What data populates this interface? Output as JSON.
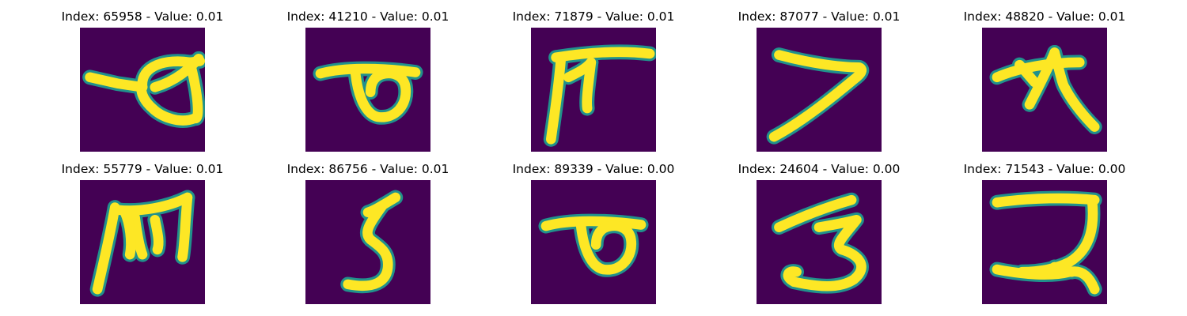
{
  "colors": {
    "background": "#440154",
    "stroke_core": "#fde725",
    "stroke_edge": "#21918c"
  },
  "panels": [
    {
      "title": "Index: 65958 - Value: 0.01",
      "glyph": "loop-with-tail"
    },
    {
      "title": "Index: 41210 - Value: 0.01",
      "glyph": "loop-with-bar"
    },
    {
      "title": "Index: 71879 - Value: 0.01",
      "glyph": "pi-shape"
    },
    {
      "title": "Index: 87077 - Value: 0.01",
      "glyph": "seven-shape"
    },
    {
      "title": "Index: 48820 - Value: 0.01",
      "glyph": "star-shape"
    },
    {
      "title": "Index: 55779 - Value: 0.01",
      "glyph": "m-shape"
    },
    {
      "title": "Index: 86756 - Value: 0.01",
      "glyph": "five-shape"
    },
    {
      "title": "Index: 89339 - Value: 0.00",
      "glyph": "loop-with-bar"
    },
    {
      "title": "Index: 24604 - Value: 0.00",
      "glyph": "three-shape"
    },
    {
      "title": "Index: 71543 - Value: 0.00",
      "glyph": "two-shape"
    }
  ]
}
